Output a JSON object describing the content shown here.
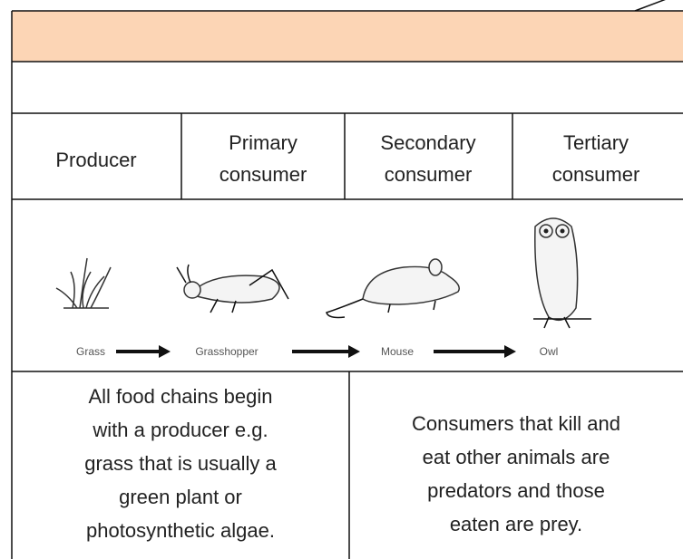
{
  "table": {
    "header_cells": [
      [
        "Producer"
      ],
      [
        "Primary",
        "consumer"
      ],
      [
        "Secondary",
        "consumer"
      ],
      [
        "Tertiary",
        "consumer"
      ]
    ],
    "chain": [
      "Grass",
      "Grasshopper",
      "Mouse",
      "Owl"
    ],
    "notes": [
      [
        "All food chains begin",
        "with a producer e.g.",
        "grass that is usually a",
        "green plant or",
        "photosynthetic algae."
      ],
      [
        "Consumers that kill and",
        "eat other animals are",
        "predators and those",
        "eaten are prey."
      ]
    ]
  }
}
